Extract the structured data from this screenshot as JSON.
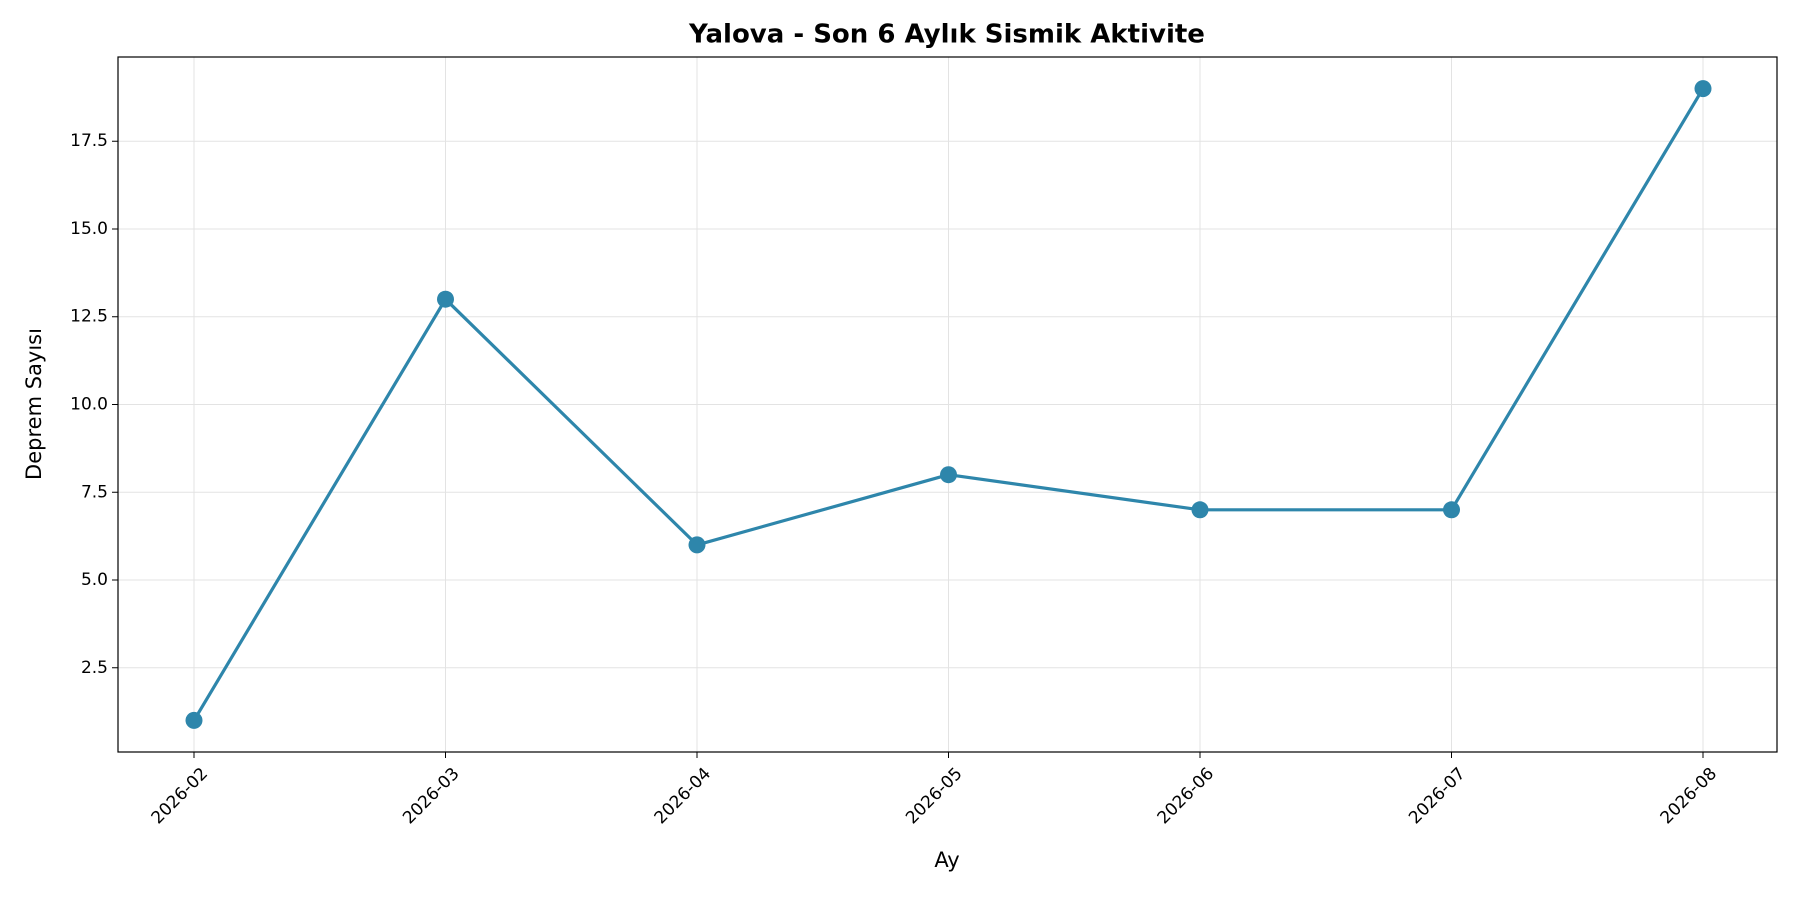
{
  "chart_data": {
    "type": "line",
    "title": "Yalova - Son 6 Aylık Sismik Aktivite",
    "xlabel": "Ay",
    "ylabel": "Deprem Sayısı",
    "categories": [
      "2026-02",
      "2026-03",
      "2026-04",
      "2026-05",
      "2026-06",
      "2026-07",
      "2026-08"
    ],
    "values": [
      1,
      13,
      6,
      8,
      7,
      7,
      19
    ],
    "color": "#2e86ab",
    "ylim": [
      0.1,
      19.9
    ],
    "yticks": [
      2.5,
      {
        "value": 5,
        "label": "5.0"
      },
      7.5,
      {
        "value": 10,
        "label": "10.0"
      },
      12.5,
      {
        "value": 15,
        "label": "15.0"
      },
      17.5
    ],
    "grid": true
  }
}
